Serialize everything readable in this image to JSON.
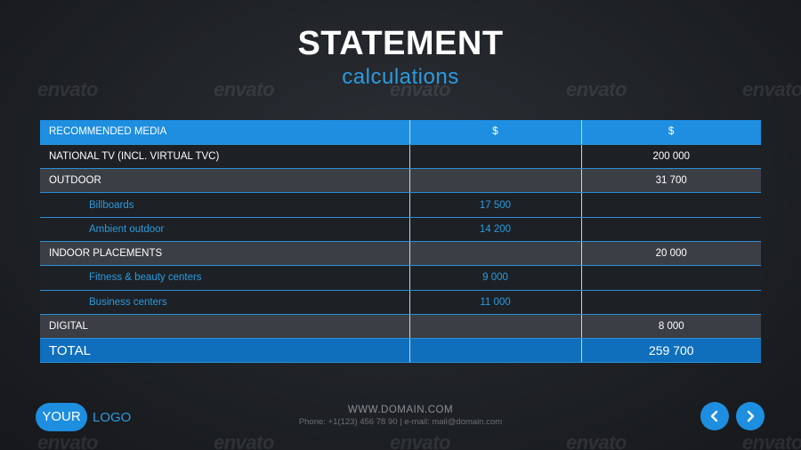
{
  "header": {
    "title": "STATEMENT",
    "subtitle": "calculations"
  },
  "watermark_text": "envato",
  "table": {
    "headers": [
      "RECOMMENDED MEDIA",
      "$",
      "$"
    ],
    "rows": [
      {
        "label": "NATIONAL TV (INCL. VIRTUAL TVC)",
        "sub_value": "",
        "value": "200 000"
      },
      {
        "label": "OUTDOOR",
        "sub_value": "",
        "value": "31 700"
      },
      {
        "label": "Billboards",
        "sub_value": "17 500",
        "value": ""
      },
      {
        "label": "Ambient outdoor",
        "sub_value": "14 200",
        "value": ""
      },
      {
        "label": "INDOOR PLACEMENTS",
        "sub_value": "",
        "value": "20 000"
      },
      {
        "label": "Fitness & beauty centers",
        "sub_value": "9 000",
        "value": ""
      },
      {
        "label": "Business centers",
        "sub_value": "11 000",
        "value": ""
      },
      {
        "label": "DIGITAL",
        "sub_value": "",
        "value": "8 000"
      }
    ],
    "total": {
      "label": "TOTAL",
      "sub_value": "",
      "value": "259 700"
    }
  },
  "footer": {
    "logo_pill": "YOUR",
    "logo_text": "LOGO",
    "url": "WWW.DOMAIN.COM",
    "contact": "Phone: +1(123) 456 78 90 | e-mail: mail@domain.com"
  },
  "nav": {
    "prev_icon": "chevron-left-icon",
    "next_icon": "chevron-right-icon"
  },
  "colors": {
    "accent": "#1e8ee0",
    "accent_text": "#2b9be0",
    "total_bg": "#0f6fbd",
    "row_dark": "#1d2024",
    "row_grey": "#3b3f45"
  }
}
